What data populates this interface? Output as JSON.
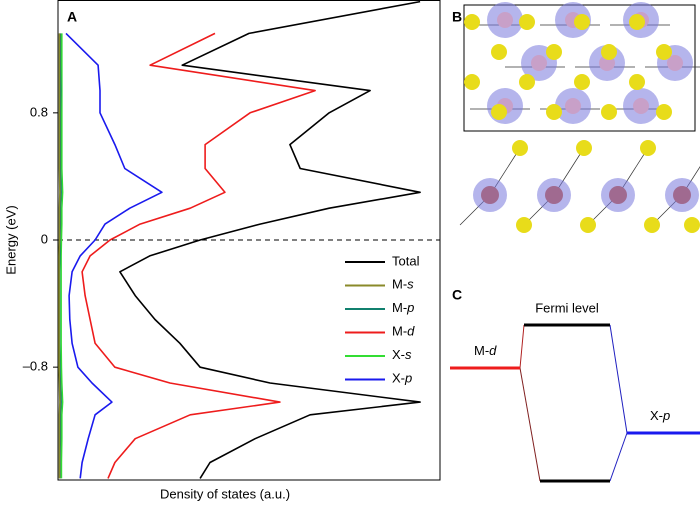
{
  "chart_data": {
    "type": "line",
    "panel_label": "A",
    "xlabel": "Density of states (a.u.)",
    "ylabel": "Energy (eV)",
    "xlim": [
      0,
      100
    ],
    "ylim": [
      -1.51,
      1.51
    ],
    "yticks": [
      {
        "value": -0.8,
        "label": "–0.8"
      },
      0,
      0.8
    ],
    "legend": "lower right",
    "y": [
      1.5,
      1.3,
      1.1,
      0.94,
      0.8,
      0.6,
      0.45,
      0.3,
      0.2,
      0.1,
      0,
      -0.1,
      -0.2,
      -0.35,
      -0.5,
      -0.65,
      -0.8,
      -0.9,
      -1.02,
      -1.1,
      -1.25,
      -1.4,
      -1.5
    ],
    "series": [
      {
        "name": "Total",
        "color": "#000000",
        "values": [
          94.8,
          50,
          32.5,
          81.7,
          71,
          60.7,
          63.4,
          94.8,
          71,
          52.9,
          37.2,
          24,
          16.2,
          20.2,
          25.4,
          31.9,
          37.2,
          55.5,
          94.8,
          66,
          51.6,
          39.8,
          37.2
        ]
      },
      {
        "name": "M-s",
        "color": "#8a8a2a",
        "values": [
          null,
          0.4,
          0.4,
          0.4,
          0.4,
          0.4,
          0.4,
          0.5,
          0.4,
          0.4,
          0.4,
          0.3,
          0.3,
          0.3,
          0.3,
          0.3,
          0.3,
          0.4,
          0.5,
          0.4,
          0.4,
          0.4,
          0.4
        ]
      },
      {
        "name": "M-p",
        "color": "#11806e",
        "values": [
          null,
          0.6,
          0.6,
          0.7,
          0.6,
          0.6,
          0.6,
          0.8,
          0.6,
          0.6,
          0.5,
          0.5,
          0.4,
          0.4,
          0.4,
          0.4,
          0.5,
          0.6,
          0.8,
          0.6,
          0.6,
          0.5,
          0.5
        ]
      },
      {
        "name": "M-d",
        "color": "#ee1c1c",
        "values": [
          null,
          41.1,
          24.1,
          67.3,
          50.3,
          38.5,
          38.5,
          43.7,
          34.6,
          21.5,
          13.6,
          8.4,
          6.3,
          7.1,
          8.4,
          9.7,
          14.9,
          29.3,
          58.1,
          34.6,
          20.2,
          14.9,
          13.1
        ]
      },
      {
        "name": "X-s",
        "color": "#33dd33",
        "values": [
          null,
          1,
          1,
          1,
          1,
          1,
          1,
          1.2,
          1,
          1,
          0.9,
          0.8,
          0.8,
          0.8,
          0.8,
          0.8,
          0.9,
          1,
          1.2,
          1,
          1,
          0.9,
          0.9
        ]
      },
      {
        "name": "X-p",
        "color": "#1a1aee",
        "values": [
          null,
          2.1,
          10.5,
          11,
          11,
          14.9,
          17.5,
          27.2,
          18.8,
          12.3,
          9.7,
          5.8,
          3.7,
          2.9,
          3.1,
          3.7,
          5.2,
          8.9,
          14.1,
          9.7,
          7.9,
          6.3,
          5.8
        ]
      }
    ]
  },
  "structure_panel": {
    "label": "B"
  },
  "diagram": {
    "label": "C",
    "levels": [
      {
        "label": "M-d"
      },
      {
        "label": "Fermi level"
      },
      {
        "label": "X-p"
      }
    ]
  }
}
